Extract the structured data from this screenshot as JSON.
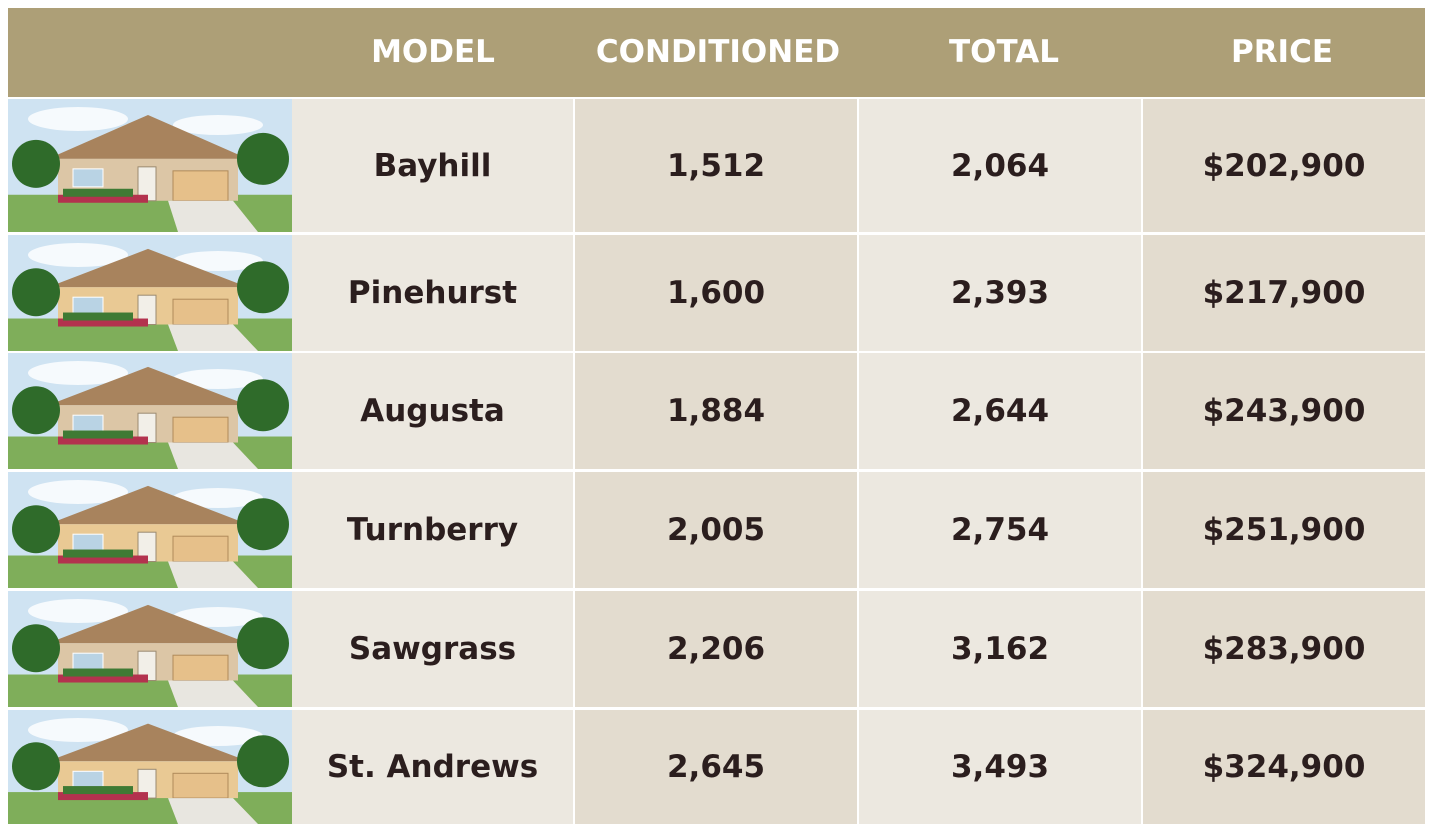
{
  "header": {
    "columns": [
      "MODEL",
      "CONDITIONED",
      "TOTAL",
      "PRICE"
    ]
  },
  "table": {
    "rows": [
      [
        "Bayhill",
        "1,512",
        "2,064",
        "$202,900"
      ],
      [
        "Pinehurst",
        "1,600",
        "2,393",
        "$217,900"
      ],
      [
        "Augusta",
        "1,884",
        "2,644",
        "$243,900"
      ],
      [
        "Turnberry",
        "2,005",
        "2,754",
        "$251,900"
      ],
      [
        "Sawgrass",
        "2,206",
        "3,162",
        "$283,900"
      ],
      [
        "St. Andrews",
        "2,645",
        "3,493",
        "$324,900"
      ]
    ]
  }
}
